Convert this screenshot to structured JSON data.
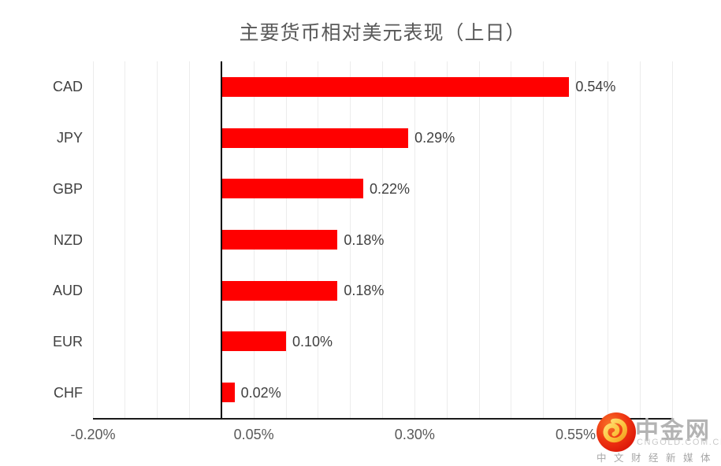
{
  "title": "主要货币相对美元表现（上日）",
  "chart_data": {
    "type": "bar",
    "orientation": "horizontal",
    "title": "主要货币相对美元表现（上日）",
    "categories": [
      "CAD",
      "JPY",
      "GBP",
      "NZD",
      "AUD",
      "EUR",
      "CHF"
    ],
    "values": [
      0.54,
      0.29,
      0.22,
      0.18,
      0.18,
      0.1,
      0.02
    ],
    "value_labels": [
      "0.54%",
      "0.29%",
      "0.22%",
      "0.18%",
      "0.18%",
      "0.10%",
      "0.02%"
    ],
    "unit": "percent",
    "xlim": [
      -0.2,
      0.7
    ],
    "x_ticks": [
      -0.2,
      0.05,
      0.3,
      0.55
    ],
    "x_tick_labels": [
      "-0.20%",
      "0.05%",
      "0.30%",
      "0.55%"
    ],
    "minor_gridline_unit": 0.05,
    "grid": true,
    "legend": false,
    "bar_color": "#ff0000"
  },
  "colors": {
    "bar": "#ff0000",
    "gridline": "#ececec",
    "zero_axis": "#000000",
    "baseline": "#1a1a1a",
    "title_text": "#595959",
    "label_text": "#404040",
    "tick_text": "#595959"
  },
  "watermark": {
    "icon": "cngold-cloud-logo-icon",
    "brand": "中金网",
    "domain": "CNGOLD.COM.CN",
    "tagline": "中文财经新媒体"
  }
}
